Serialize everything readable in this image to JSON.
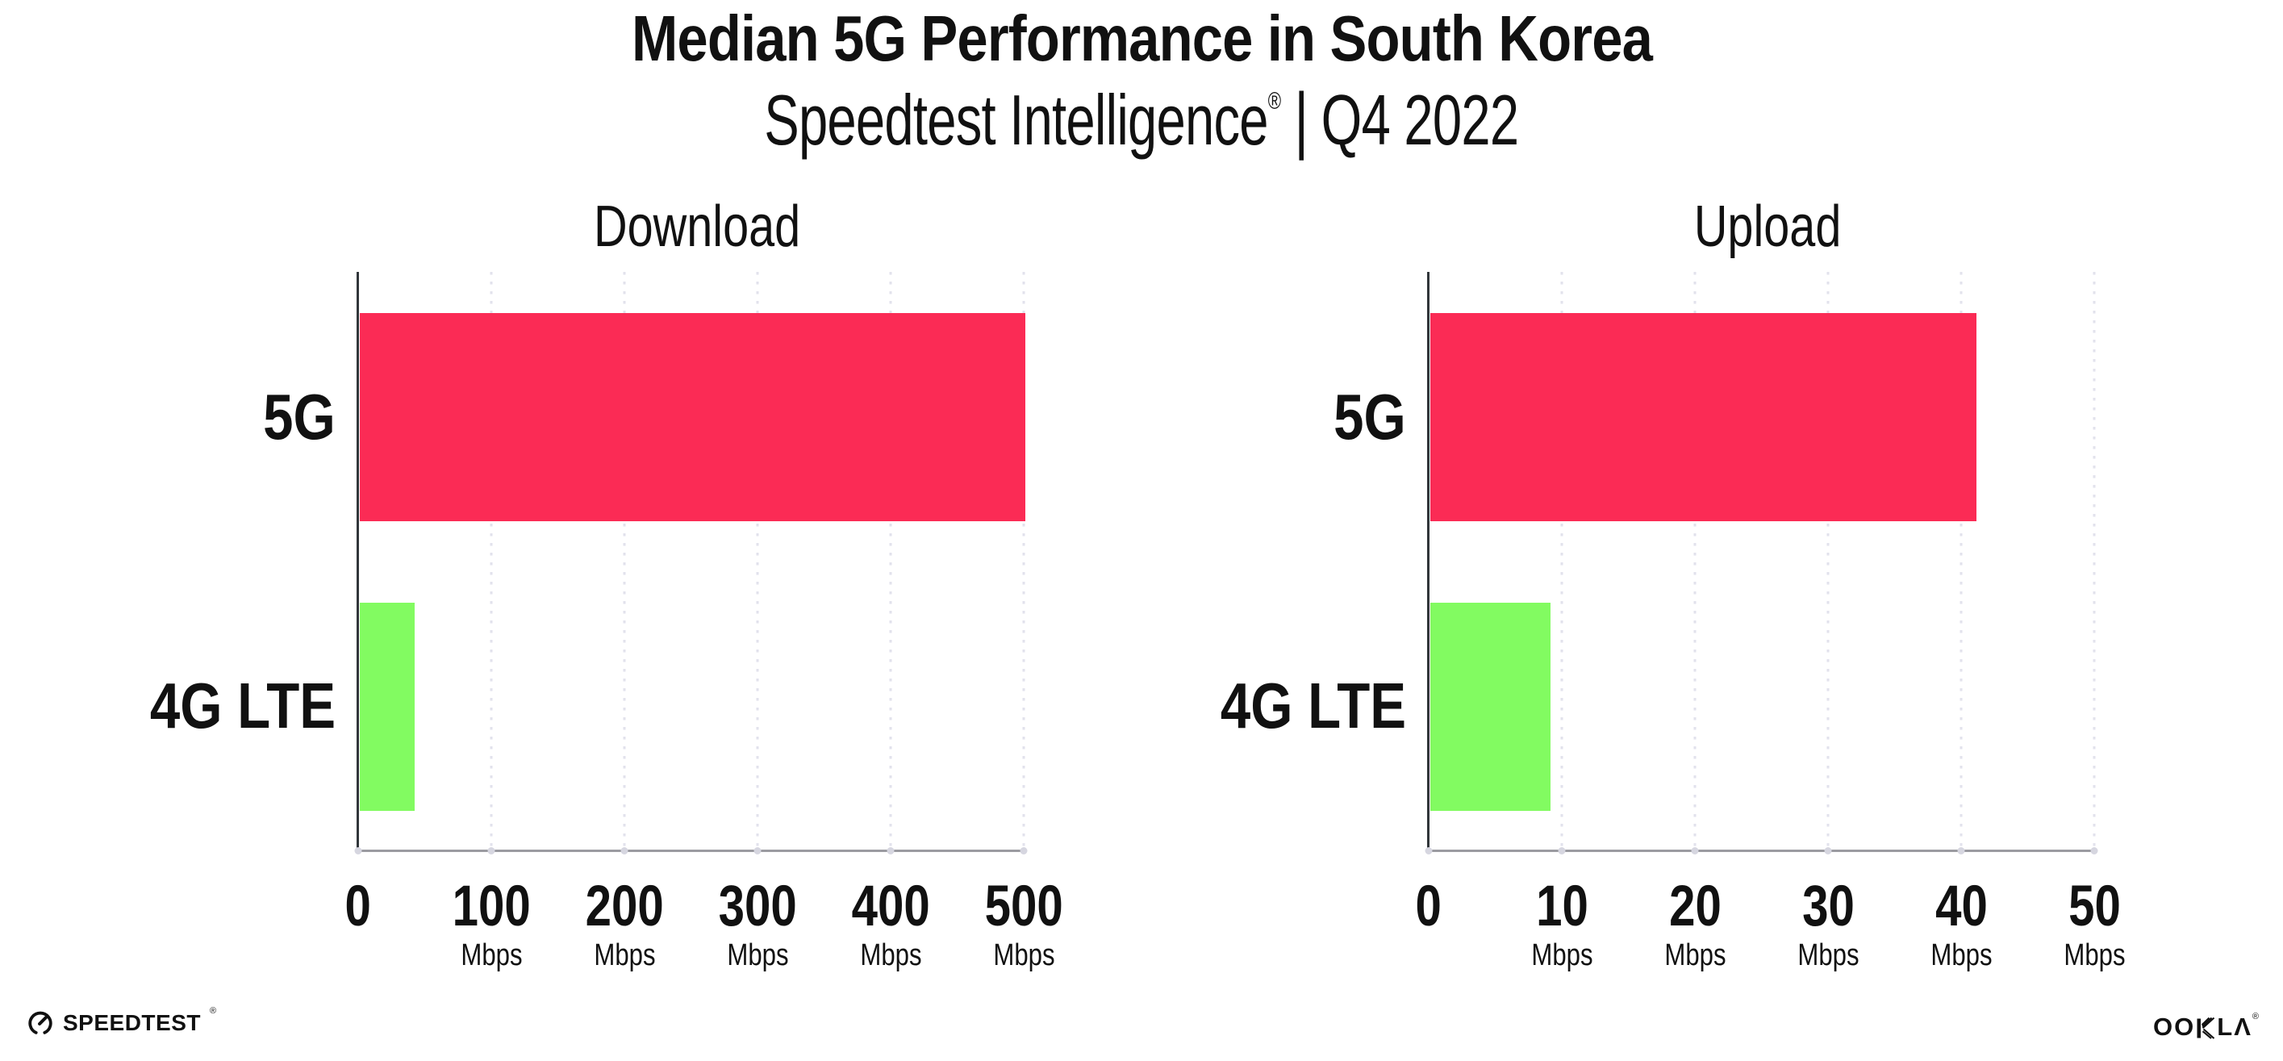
{
  "header": {
    "title": "Median 5G Performance in South Korea",
    "subtitle": {
      "brand": "Speedtest Intelligence",
      "registered_mark": "®",
      "separator": "|",
      "period": "Q4 2022"
    }
  },
  "chart_data": [
    {
      "type": "bar",
      "orientation": "horizontal",
      "title": "Download",
      "categories": [
        "5G",
        "4G LTE"
      ],
      "values": [
        500,
        41
      ],
      "unit": "Mbps",
      "xlim": [
        0,
        500
      ],
      "xticks": [
        0,
        100,
        200,
        300,
        400,
        500
      ],
      "xtick_unit": "Mbps",
      "bar_colors": {
        "5G": "#fb2b55",
        "4G LTE": "#82fb61"
      },
      "grid": "vertical-dotted",
      "legend": "none"
    },
    {
      "type": "bar",
      "orientation": "horizontal",
      "title": "Upload",
      "categories": [
        "5G",
        "4G LTE"
      ],
      "values": [
        41,
        9
      ],
      "unit": "Mbps",
      "xlim": [
        0,
        50
      ],
      "xticks": [
        0,
        10,
        20,
        30,
        40,
        50
      ],
      "xtick_unit": "Mbps",
      "bar_colors": {
        "5G": "#fb2b55",
        "4G LTE": "#82fb61"
      },
      "grid": "vertical-dotted",
      "legend": "none"
    }
  ],
  "footer": {
    "speedtest_label": "SPEEDTEST",
    "speedtest_registered": "®",
    "ookla_label": "OOKLA",
    "ookla_label_left": "OO",
    "ookla_label_l": "L",
    "ookla_label_a": "Λ",
    "ookla_registered": "®"
  },
  "colors": {
    "bar_5g": "#fb2b55",
    "bar_4g_lte": "#82fb61",
    "y_axis": "#31363a",
    "x_axis": "#9b9ba1",
    "gridline": "#e2e2ec",
    "tick_dot": "#d6d6e0",
    "text": "#111111",
    "background": "#ffffff"
  }
}
